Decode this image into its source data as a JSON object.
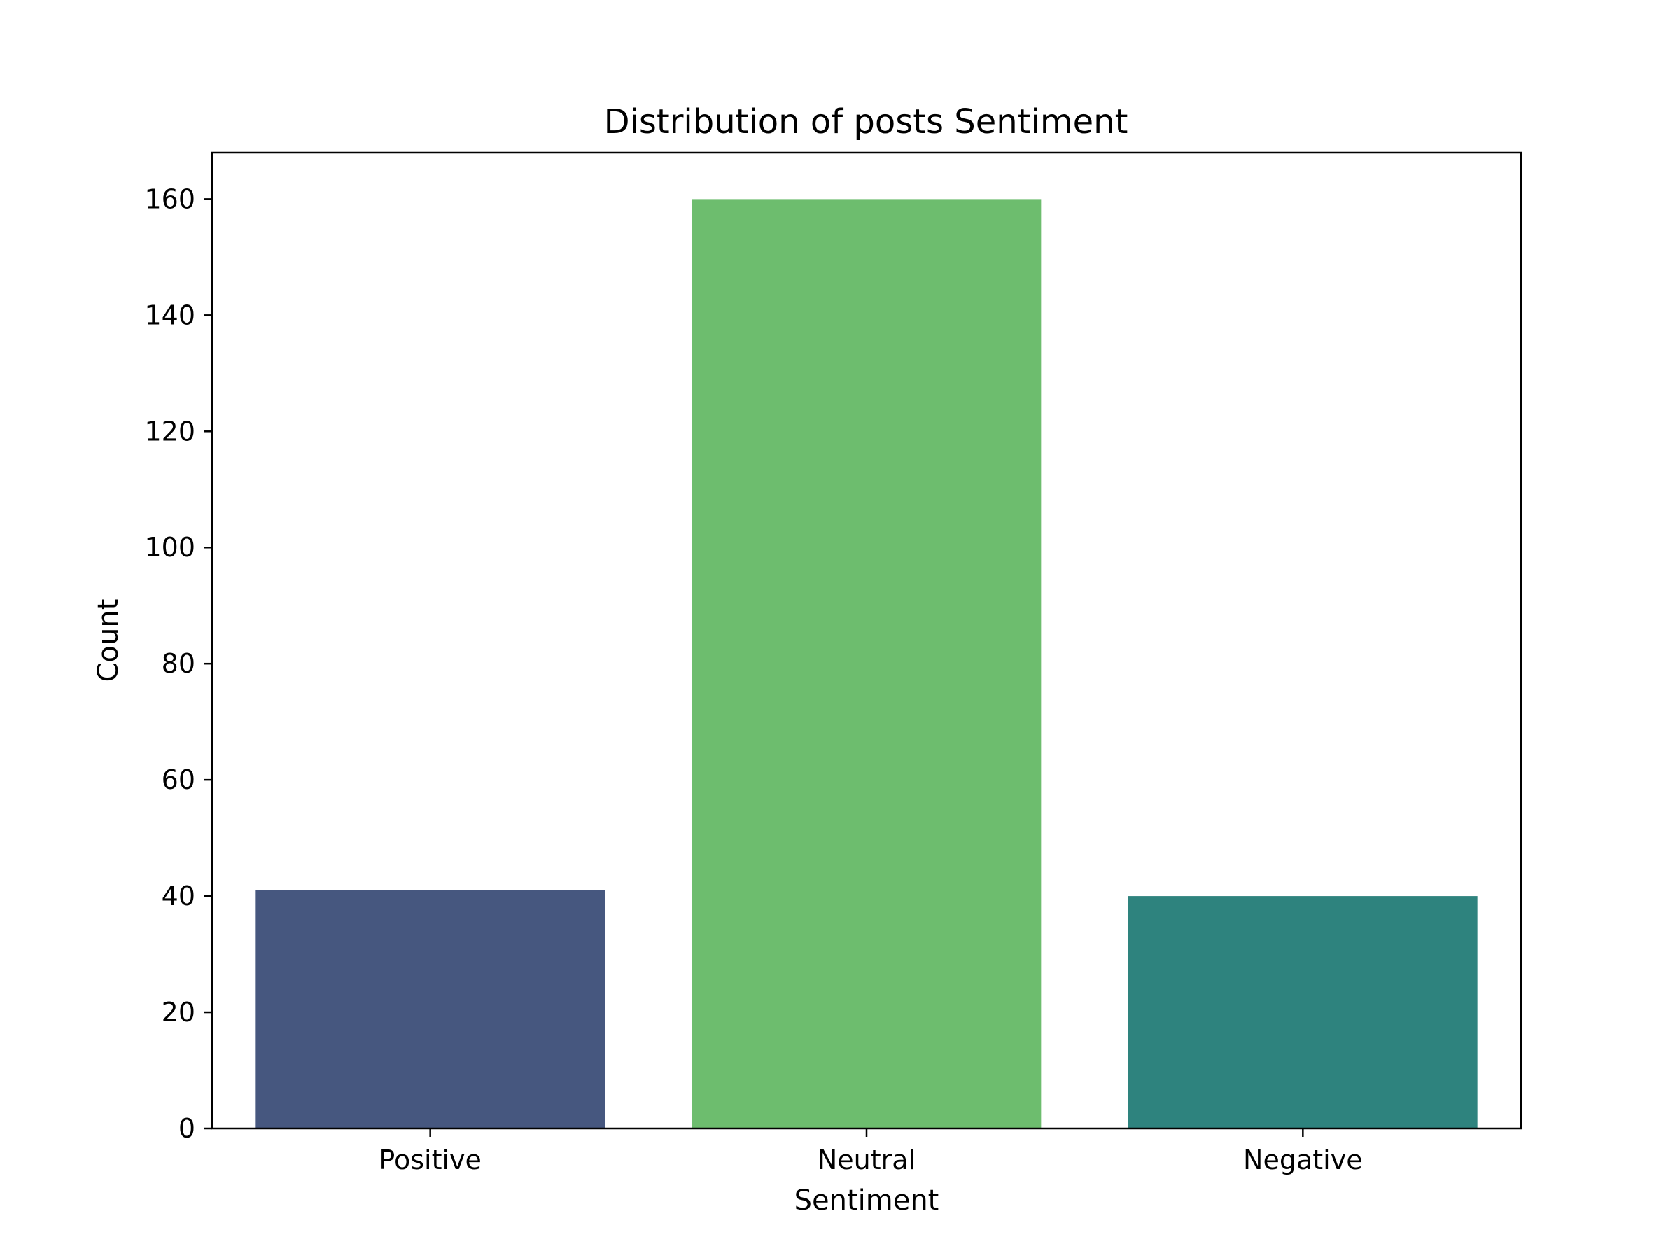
{
  "chart_data": {
    "type": "bar",
    "title": "Distribution of posts Sentiment",
    "xlabel": "Sentiment",
    "ylabel": "Count",
    "categories": [
      "Positive",
      "Neutral",
      "Negative"
    ],
    "values": [
      41,
      160,
      40
    ],
    "colors": [
      "#46577f",
      "#6dbd6e",
      "#2e837e"
    ],
    "ylim": [
      0,
      168
    ],
    "yticks": [
      0,
      20,
      40,
      60,
      80,
      100,
      120,
      140,
      160
    ],
    "grid": false,
    "legend": "none"
  }
}
